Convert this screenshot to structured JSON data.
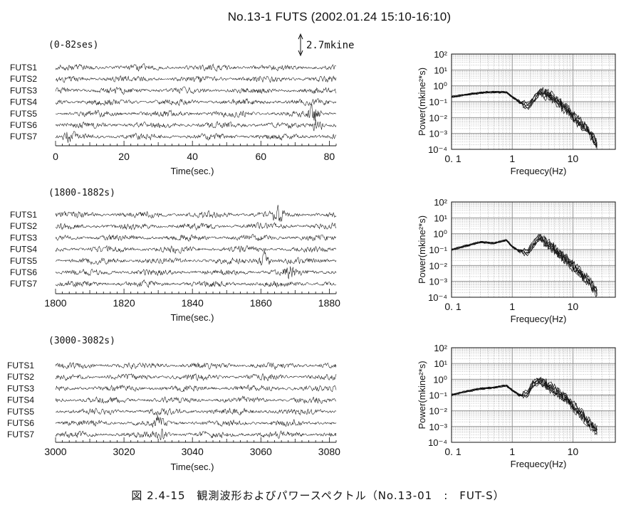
{
  "title": "No.13-1 FUTS (2002.01.24 15:10-16:10)",
  "caption": "図 2.4-15　観測波形およびパワースペクトル（No.13-01　:　FUT-S）",
  "scale_label": "2.7mkine",
  "chart_data": [
    {
      "type": "line",
      "subtitle": "(0-82ses)",
      "xlabel": "Time(sec.)",
      "xlim": [
        0,
        82
      ],
      "xticks": [
        "0",
        "20",
        "40",
        "60",
        "80"
      ],
      "tick_values": [
        0,
        20,
        40,
        60,
        80
      ],
      "series": [
        {
          "name": "FUTS1"
        },
        {
          "name": "FUTS2"
        },
        {
          "name": "FUTS3"
        },
        {
          "name": "FUTS4"
        },
        {
          "name": "FUTS5"
        },
        {
          "name": "FUTS6"
        },
        {
          "name": "FUTS7"
        }
      ],
      "bursts": [
        {
          "trace": 4,
          "t": 75.5,
          "amp": 3.5
        },
        {
          "trace": 5,
          "t": 76.5,
          "amp": 3.2
        },
        {
          "trace": 6,
          "t": 4,
          "amp": 2.0
        }
      ]
    },
    {
      "type": "line",
      "subtitle": "(1800-1882s)",
      "xlabel": "Time(sec.)",
      "xlim": [
        1800,
        1882
      ],
      "xticks": [
        "1800",
        "1820",
        "1840",
        "1860",
        "1880"
      ],
      "tick_values": [
        1800,
        1820,
        1840,
        1860,
        1880
      ],
      "series": [
        {
          "name": "FUTS1"
        },
        {
          "name": "FUTS2"
        },
        {
          "name": "FUTS3"
        },
        {
          "name": "FUTS4"
        },
        {
          "name": "FUTS5"
        },
        {
          "name": "FUTS6"
        },
        {
          "name": "FUTS7"
        }
      ],
      "bursts": [
        {
          "trace": 0,
          "t": 1865,
          "amp": 3.0
        },
        {
          "trace": 4,
          "t": 1861,
          "amp": 3.5
        },
        {
          "trace": 5,
          "t": 1868,
          "amp": 2.5
        }
      ]
    },
    {
      "type": "line",
      "subtitle": "(3000-3082s)",
      "xlabel": "Time(sec.)",
      "xlim": [
        3000,
        3082
      ],
      "xticks": [
        "3000",
        "3020",
        "3040",
        "3060",
        "3080"
      ],
      "tick_values": [
        3000,
        3020,
        3040,
        3060,
        3080
      ],
      "series": [
        {
          "name": "FUTS1"
        },
        {
          "name": "FUTS2"
        },
        {
          "name": "FUTS3"
        },
        {
          "name": "FUTS4"
        },
        {
          "name": "FUTS5"
        },
        {
          "name": "FUTS6"
        },
        {
          "name": "FUTS7"
        }
      ],
      "bursts": [
        {
          "trace": 5,
          "t": 3030,
          "amp": 2.5
        },
        {
          "trace": 6,
          "t": 3031,
          "amp": 2.2
        }
      ]
    },
    {
      "type": "line",
      "xscale": "log",
      "yscale": "log",
      "xlabel": "Frequecy(Hz)",
      "ylabel": "Power(mkine²*s)",
      "xlim": [
        0.1,
        50
      ],
      "ylim": [
        0.0001,
        100
      ],
      "xticks": [
        "0. 1",
        "1",
        "10"
      ],
      "yticks": [
        "10²",
        "10¹",
        "10⁰",
        "10⁻¹",
        "10⁻²",
        "10⁻³",
        "10⁻⁴"
      ],
      "grid": true,
      "spectrum": {
        "freqs": [
          0.1,
          0.2,
          0.4,
          0.8,
          1.0,
          1.3,
          1.8,
          2.2,
          2.8,
          3.5,
          5,
          8,
          12,
          18,
          25
        ],
        "power": [
          0.2,
          0.3,
          0.4,
          0.4,
          0.2,
          0.1,
          0.05,
          0.12,
          0.4,
          0.3,
          0.15,
          0.03,
          0.006,
          0.0015,
          0.0002
        ]
      }
    },
    {
      "type": "line",
      "xscale": "log",
      "yscale": "log",
      "xlabel": "Frequecy(Hz)",
      "ylabel": "Power(mkine²*s)",
      "xlim": [
        0.1,
        50
      ],
      "ylim": [
        0.0001,
        100
      ],
      "xticks": [
        "0. 1",
        "1",
        "10"
      ],
      "yticks": [
        "10²",
        "10¹",
        "10⁰",
        "10⁻¹",
        "10⁻²",
        "10⁻³",
        "10⁻⁴"
      ],
      "grid": true,
      "spectrum": {
        "freqs": [
          0.1,
          0.15,
          0.3,
          0.5,
          0.8,
          1.0,
          1.3,
          1.8,
          2.2,
          2.8,
          3.5,
          5,
          8,
          12,
          18,
          25
        ],
        "power": [
          0.1,
          0.15,
          0.3,
          0.25,
          0.4,
          0.15,
          0.08,
          0.07,
          0.2,
          0.6,
          0.3,
          0.1,
          0.02,
          0.005,
          0.001,
          0.0002
        ]
      }
    },
    {
      "type": "line",
      "xscale": "log",
      "yscale": "log",
      "xlabel": "Frequecy(Hz)",
      "ylabel": "Power(mkine²*s)",
      "xlim": [
        0.1,
        50
      ],
      "ylim": [
        0.0001,
        100
      ],
      "xticks": [
        "0. 1",
        "1",
        "10"
      ],
      "yticks": [
        "10²",
        "10¹",
        "10⁰",
        "10⁻¹",
        "10⁻²",
        "10⁻³",
        "10⁻⁴"
      ],
      "grid": true,
      "spectrum": {
        "freqs": [
          0.1,
          0.15,
          0.3,
          0.5,
          0.8,
          1.0,
          1.3,
          1.8,
          2.2,
          2.8,
          3.5,
          5,
          8,
          12,
          18,
          25
        ],
        "power": [
          0.1,
          0.15,
          0.25,
          0.3,
          0.4,
          0.2,
          0.1,
          0.12,
          0.5,
          0.8,
          0.5,
          0.2,
          0.05,
          0.01,
          0.002,
          0.0005
        ]
      }
    }
  ]
}
